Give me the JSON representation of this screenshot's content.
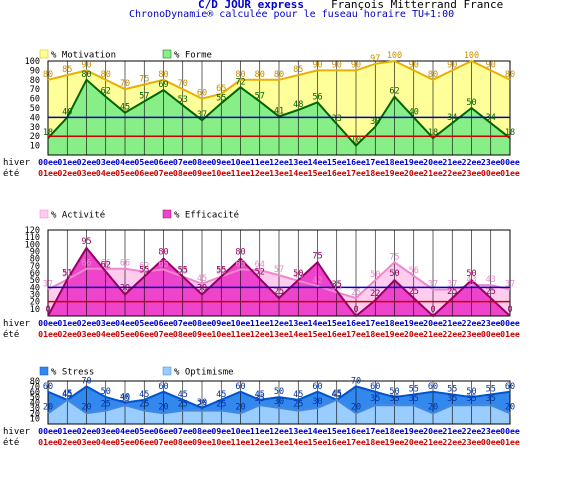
{
  "header": {
    "title": "C/D JOUR express",
    "person": "François Mitterrand France",
    "subtitle": "ChronoDynamie® calculée pour le fuseau horaire TU+1:00"
  },
  "row_labels": {
    "winter": "hiver",
    "summer": "été"
  },
  "hours_winter": [
    "00ee",
    "01ee",
    "02ee",
    "03ee",
    "04ee",
    "05ee",
    "06ee",
    "07ee",
    "08ee",
    "09ee",
    "10ee",
    "11ee",
    "12ee",
    "13ee",
    "14ee",
    "15ee",
    "16ee",
    "17ee",
    "18ee",
    "19ee",
    "20ee",
    "21ee",
    "22ee",
    "23ee",
    "00ee"
  ],
  "hours_summer": [
    "01ee",
    "02ee",
    "03ee",
    "04ee",
    "05ee",
    "06ee",
    "07ee",
    "08ee",
    "09ee",
    "10ee",
    "11ee",
    "12ee",
    "13ee",
    "14ee",
    "15ee",
    "16ee",
    "17ee",
    "18ee",
    "19ee",
    "20ee",
    "21ee",
    "22ee",
    "23ee",
    "00ee",
    "01ee"
  ],
  "colors": {
    "hour_winter": "#0000cc",
    "hour_summer": "#cc0000",
    "line_blue": "#0000cc",
    "line_red": "#cc0000",
    "grid": "#000000"
  },
  "chart_data": [
    {
      "type": "area",
      "ylim": [
        0,
        100
      ],
      "yticks": [
        10,
        20,
        30,
        40,
        50,
        60,
        70,
        80,
        90,
        100
      ],
      "reference_lines": [
        40,
        20
      ],
      "series": [
        {
          "name": "% Motivation",
          "fill": "#ffff99",
          "stroke": "#e8b000",
          "label_color": "#c89000",
          "values": [
            80,
            85,
            90,
            80,
            70,
            75,
            80,
            70,
            60,
            65,
            80,
            80,
            80,
            85,
            90,
            90,
            90,
            97,
            100,
            90,
            80,
            90,
            100,
            90,
            80
          ]
        },
        {
          "name": "% Forme",
          "fill": "#88ee88",
          "stroke": "#006600",
          "label_color": "#006600",
          "values": [
            18,
            40,
            80,
            62,
            45,
            57,
            69,
            53,
            37,
            55,
            72,
            57,
            41,
            48,
            56,
            33,
            10,
            30,
            62,
            40,
            18,
            34,
            50,
            34,
            18
          ]
        }
      ]
    },
    {
      "type": "area",
      "ylim": [
        0,
        120
      ],
      "yticks": [
        10,
        20,
        30,
        40,
        50,
        60,
        70,
        80,
        90,
        100,
        110,
        120
      ],
      "reference_lines": [
        40,
        20
      ],
      "series": [
        {
          "name": "% Activité",
          "fill": "#ffccee",
          "stroke": "#ee88cc",
          "label_color": "#ee88cc",
          "values": [
            37,
            51,
            66,
            66,
            66,
            62,
            65,
            55,
            45,
            55,
            65,
            64,
            57,
            49,
            42,
            33,
            25,
            50,
            75,
            56,
            37,
            37,
            43,
            43,
            37
          ]
        },
        {
          "name": "% Efficacité",
          "fill": "#ee44cc",
          "stroke": "#990066",
          "label_color": "#990066",
          "values": [
            0,
            51,
            95,
            62,
            30,
            55,
            80,
            55,
            30,
            55,
            80,
            52,
            25,
            50,
            75,
            35,
            0,
            22,
            50,
            25,
            0,
            25,
            50,
            25,
            0
          ]
        }
      ]
    },
    {
      "type": "area",
      "ylim": [
        0,
        80
      ],
      "yticks": [
        10,
        20,
        30,
        40,
        50,
        60,
        70,
        80
      ],
      "reference_lines": [],
      "series": [
        {
          "name": "% Stress",
          "fill": "#3388ee",
          "stroke": "#0055cc",
          "label_color": "#0033aa",
          "values": [
            60,
            45,
            70,
            50,
            40,
            45,
            60,
            45,
            30,
            45,
            60,
            45,
            50,
            45,
            60,
            45,
            70,
            60,
            50,
            55,
            60,
            55,
            50,
            55,
            60
          ]
        },
        {
          "name": "% Optimisme",
          "fill": "#99ccff",
          "stroke": "#4488dd",
          "label_color": "#0033aa",
          "values": [
            20,
            45,
            20,
            25,
            35,
            25,
            20,
            25,
            25,
            25,
            20,
            35,
            30,
            25,
            30,
            45,
            20,
            35,
            35,
            35,
            20,
            35,
            35,
            35,
            20
          ]
        }
      ]
    }
  ]
}
